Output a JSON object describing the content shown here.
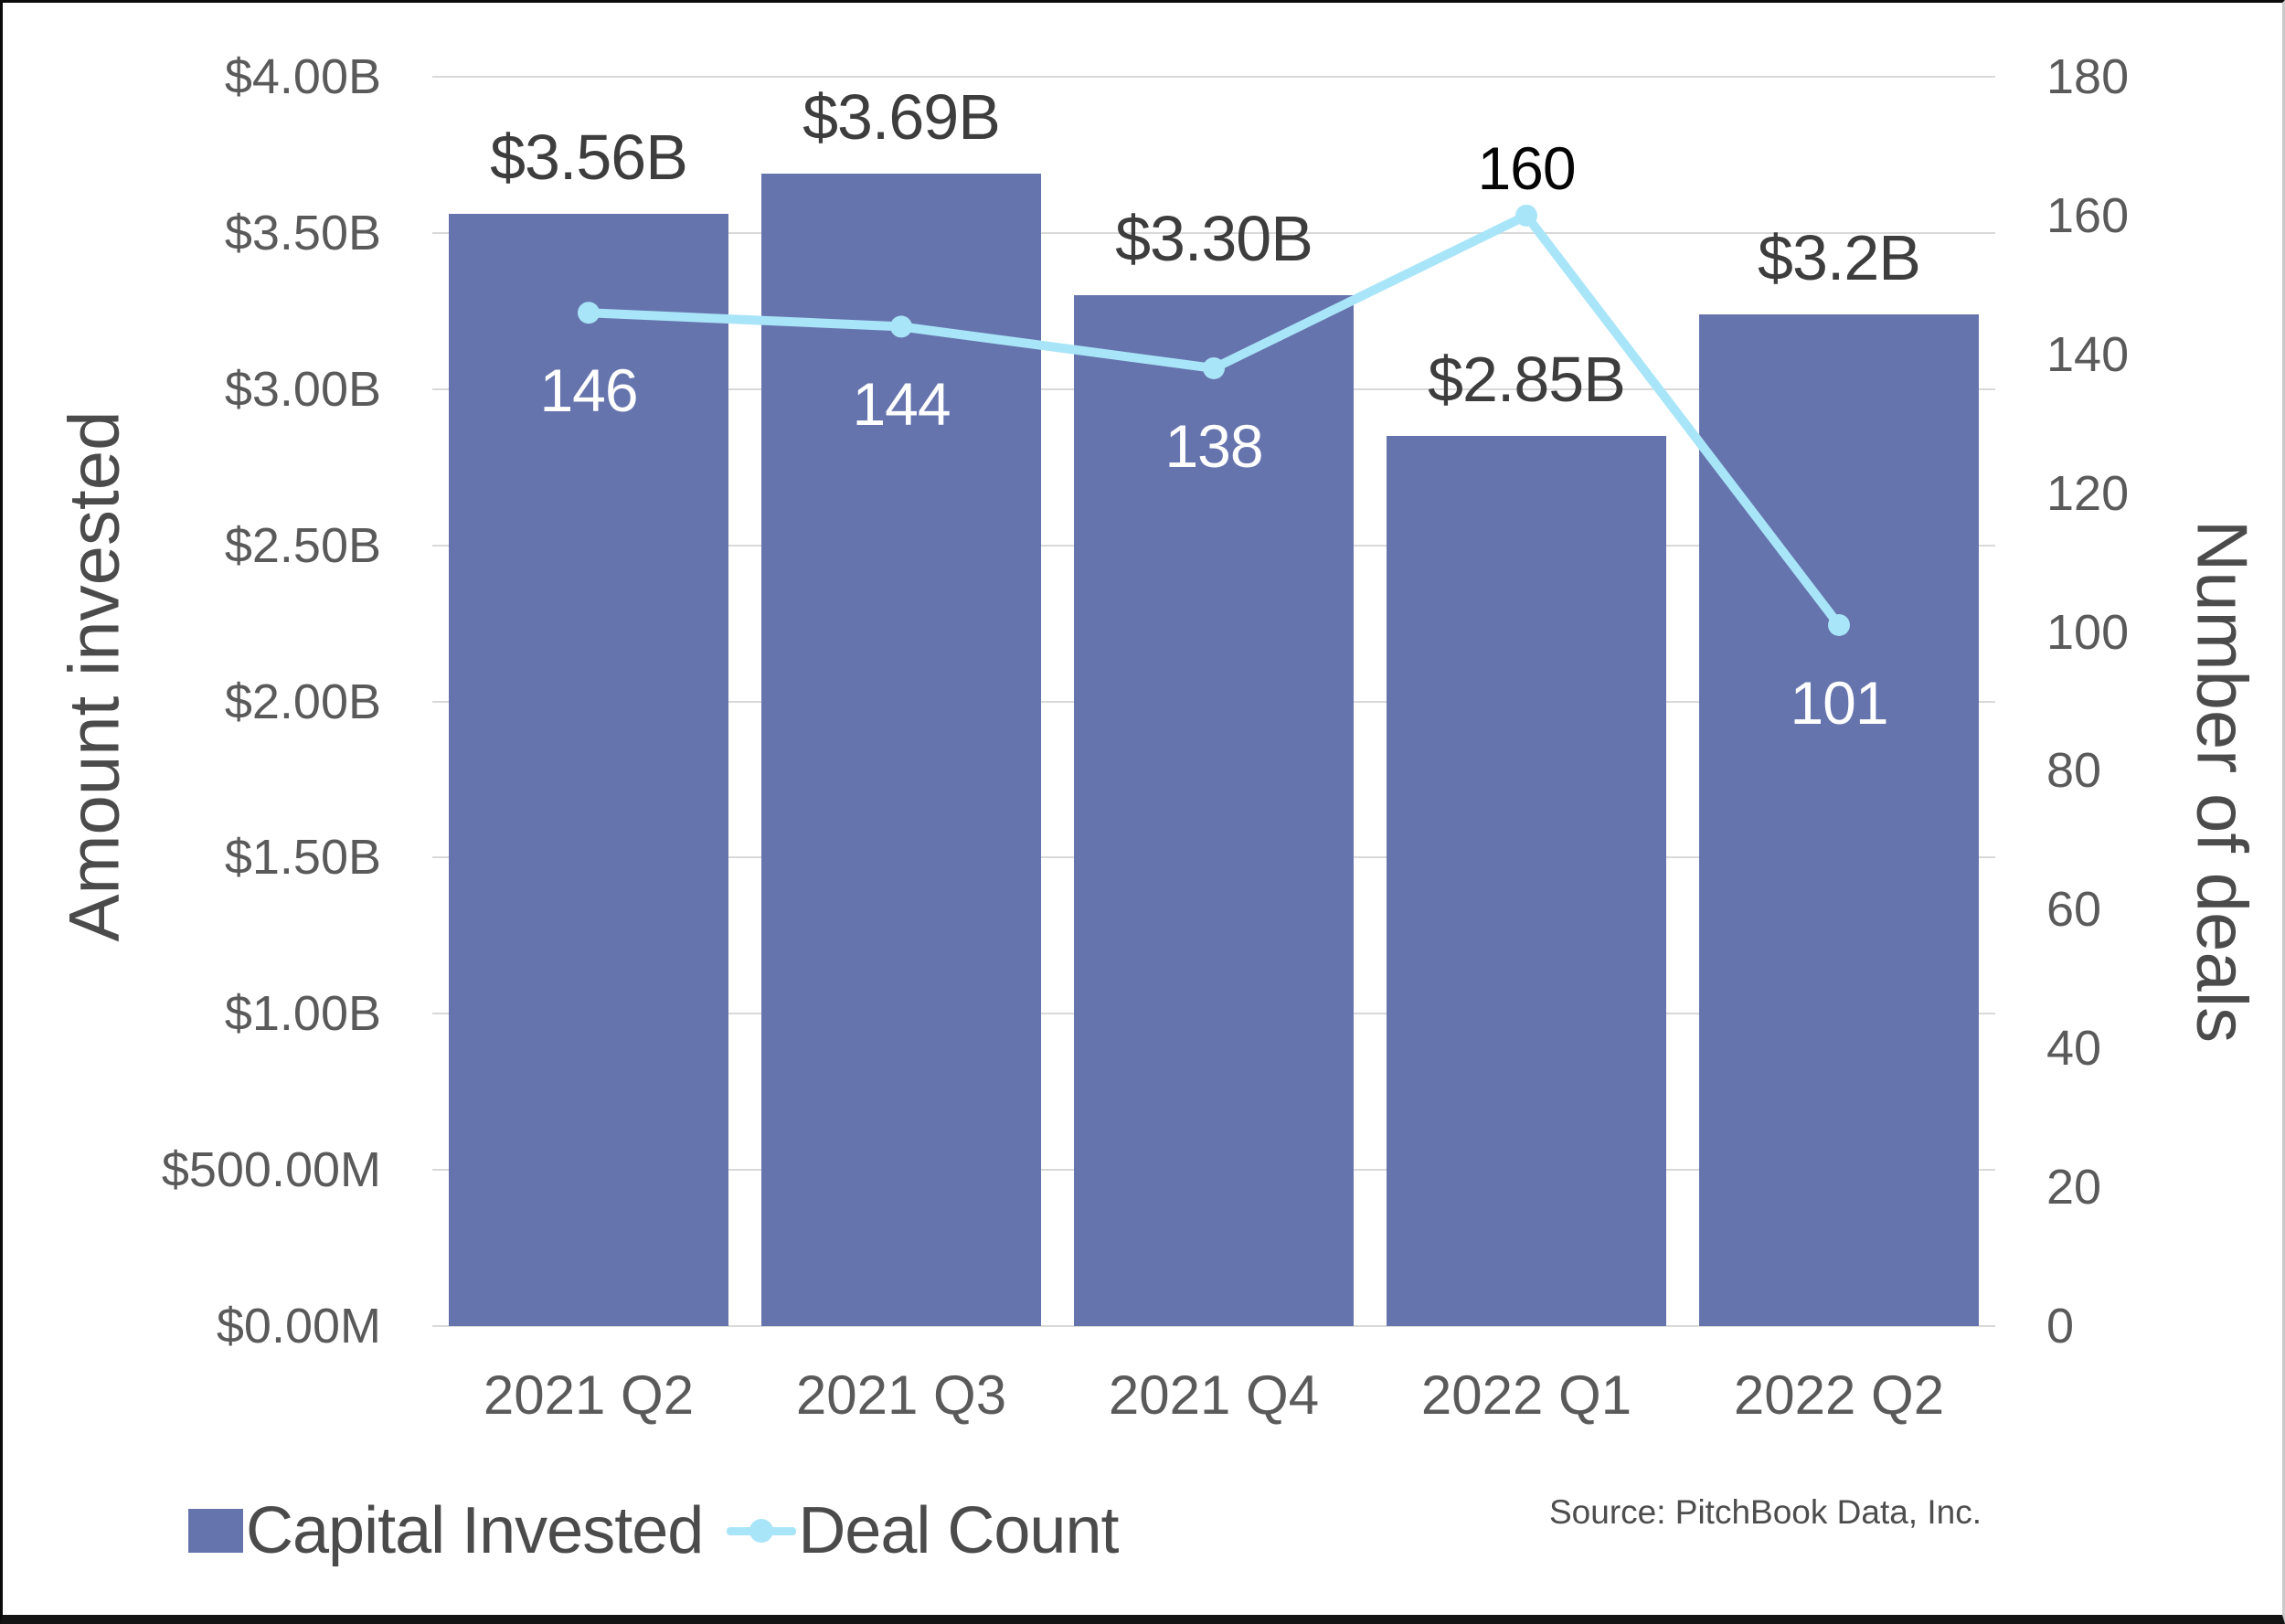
{
  "chart_data": {
    "type": "combo",
    "title": "",
    "categories": [
      "2021 Q2",
      "2021 Q3",
      "2021 Q4",
      "2022 Q1",
      "2022 Q2"
    ],
    "series": [
      {
        "name": "Capital Invested",
        "type": "bar",
        "axis": "left",
        "unit": "USD",
        "values": [
          3.56,
          3.69,
          3.3,
          2.85,
          3.24
        ],
        "labels": [
          "$3.56B",
          "$3.69B",
          "$3.30B",
          "$2.85B",
          "$3.2B"
        ],
        "color": "#6674AD"
      },
      {
        "name": "Deal Count",
        "type": "line",
        "axis": "right",
        "values": [
          146,
          144,
          138,
          160,
          101
        ],
        "labels": [
          "146",
          "144",
          "138",
          "160",
          "101"
        ],
        "label_positions": [
          "below",
          "below",
          "below",
          "above",
          "below"
        ],
        "label_colors": [
          "#ffffff",
          "#ffffff",
          "#ffffff",
          "#050505",
          "#ffffff"
        ],
        "color": "#A9E5F8"
      }
    ],
    "left_axis": {
      "title": "Amount invested",
      "max": 4.0,
      "tick_labels": [
        "$4.00B",
        "$3.50B",
        "$3.00B",
        "$2.50B",
        "$2.00B",
        "$1.50B",
        "$1.00B",
        "$500.00M",
        "$0.00M"
      ],
      "tick_values": [
        4.0,
        3.5,
        3.0,
        2.5,
        2.0,
        1.5,
        1.0,
        0.5,
        0
      ]
    },
    "right_axis": {
      "title": "Number of deals",
      "max": 180,
      "tick_labels": [
        "180",
        "160",
        "140",
        "120",
        "100",
        "80",
        "60",
        "40",
        "20",
        "0"
      ],
      "tick_values": [
        180,
        160,
        140,
        120,
        100,
        80,
        60,
        40,
        20,
        0
      ]
    },
    "grid": true,
    "legend_position": "bottom-left"
  },
  "legend": {
    "capital_invested": "Capital Invested",
    "deal_count": "Deal Count"
  },
  "source": "Source: PitchBook Data, Inc.",
  "colors": {
    "bar": "#6674AD",
    "line": "#A9E5F8",
    "grid": "#d9d9d9",
    "tick_text": "#5a5a5a",
    "bar_label_text": "#3d3d3d",
    "legend_text": "#4b4b4b",
    "source_text": "#4d4d4d"
  }
}
